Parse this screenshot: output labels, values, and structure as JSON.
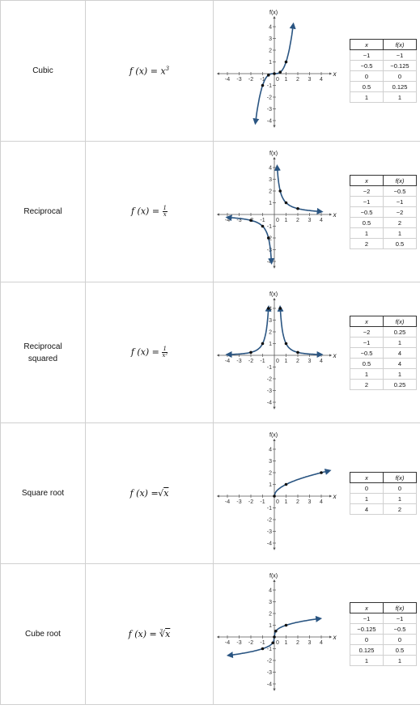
{
  "rows": [
    {
      "name": "Cubic",
      "formula": {
        "lhs": "f (x) = ",
        "type": "power",
        "base": "x",
        "exp": "3"
      },
      "plot": {
        "kind": "cubic"
      },
      "table": {
        "header": [
          "x",
          "f(x)"
        ],
        "rows": [
          [
            "−1",
            "−1"
          ],
          [
            "−0.5",
            "−0.125"
          ],
          [
            "0",
            "0"
          ],
          [
            "0.5",
            "0.125"
          ],
          [
            "1",
            "1"
          ]
        ]
      }
    },
    {
      "name": "Reciprocal",
      "formula": {
        "lhs": "f (x) = ",
        "type": "frac",
        "num": "1",
        "den": "x"
      },
      "plot": {
        "kind": "reciprocal"
      },
      "table": {
        "header": [
          "x",
          "f(x)"
        ],
        "rows": [
          [
            "−2",
            "−0.5"
          ],
          [
            "−1",
            "−1"
          ],
          [
            "−0.5",
            "−2"
          ],
          [
            "0.5",
            "2"
          ],
          [
            "1",
            "1"
          ],
          [
            "2",
            "0.5"
          ]
        ]
      }
    },
    {
      "name": "Reciprocal squared",
      "formula": {
        "lhs": "f (x) = ",
        "type": "frac",
        "num": "1",
        "den": "x²"
      },
      "plot": {
        "kind": "recip2"
      },
      "table": {
        "header": [
          "x",
          "f(x)"
        ],
        "rows": [
          [
            "−2",
            "0.25"
          ],
          [
            "−1",
            "1"
          ],
          [
            "−0.5",
            "4"
          ],
          [
            "0.5",
            "4"
          ],
          [
            "1",
            "1"
          ],
          [
            "2",
            "0.25"
          ]
        ]
      }
    },
    {
      "name": "Square root",
      "formula": {
        "lhs": "f (x) = ",
        "type": "root",
        "index": "",
        "radicand": "x"
      },
      "plot": {
        "kind": "sqrt"
      },
      "table": {
        "header": [
          "x",
          "f(x)"
        ],
        "rows": [
          [
            "0",
            "0"
          ],
          [
            "1",
            "1"
          ],
          [
            "4",
            "2"
          ]
        ]
      }
    },
    {
      "name": "Cube root",
      "formula": {
        "lhs": "f (x) = ",
        "type": "root",
        "index": "3",
        "radicand": "x"
      },
      "plot": {
        "kind": "cbrt"
      },
      "table": {
        "header": [
          "x",
          "f(x)"
        ],
        "rows": [
          [
            "−1",
            "−1"
          ],
          [
            "−0.125",
            "−0.5"
          ],
          [
            "0",
            "0"
          ],
          [
            "0.125",
            "0.5"
          ],
          [
            "1",
            "1"
          ]
        ]
      }
    }
  ],
  "axis": {
    "xlabel": "x",
    "ylabel": "f(x)",
    "xticks": [
      "-4",
      "-3",
      "-2",
      "-1",
      "1",
      "2",
      "3",
      "4"
    ],
    "yticks": [
      "4",
      "3",
      "2",
      "1",
      "-1",
      "-2",
      "-3",
      "-4"
    ],
    "origin": "0"
  },
  "colors": {
    "curve": "#2a5582",
    "axis": "#555555",
    "point": "#111111"
  }
}
